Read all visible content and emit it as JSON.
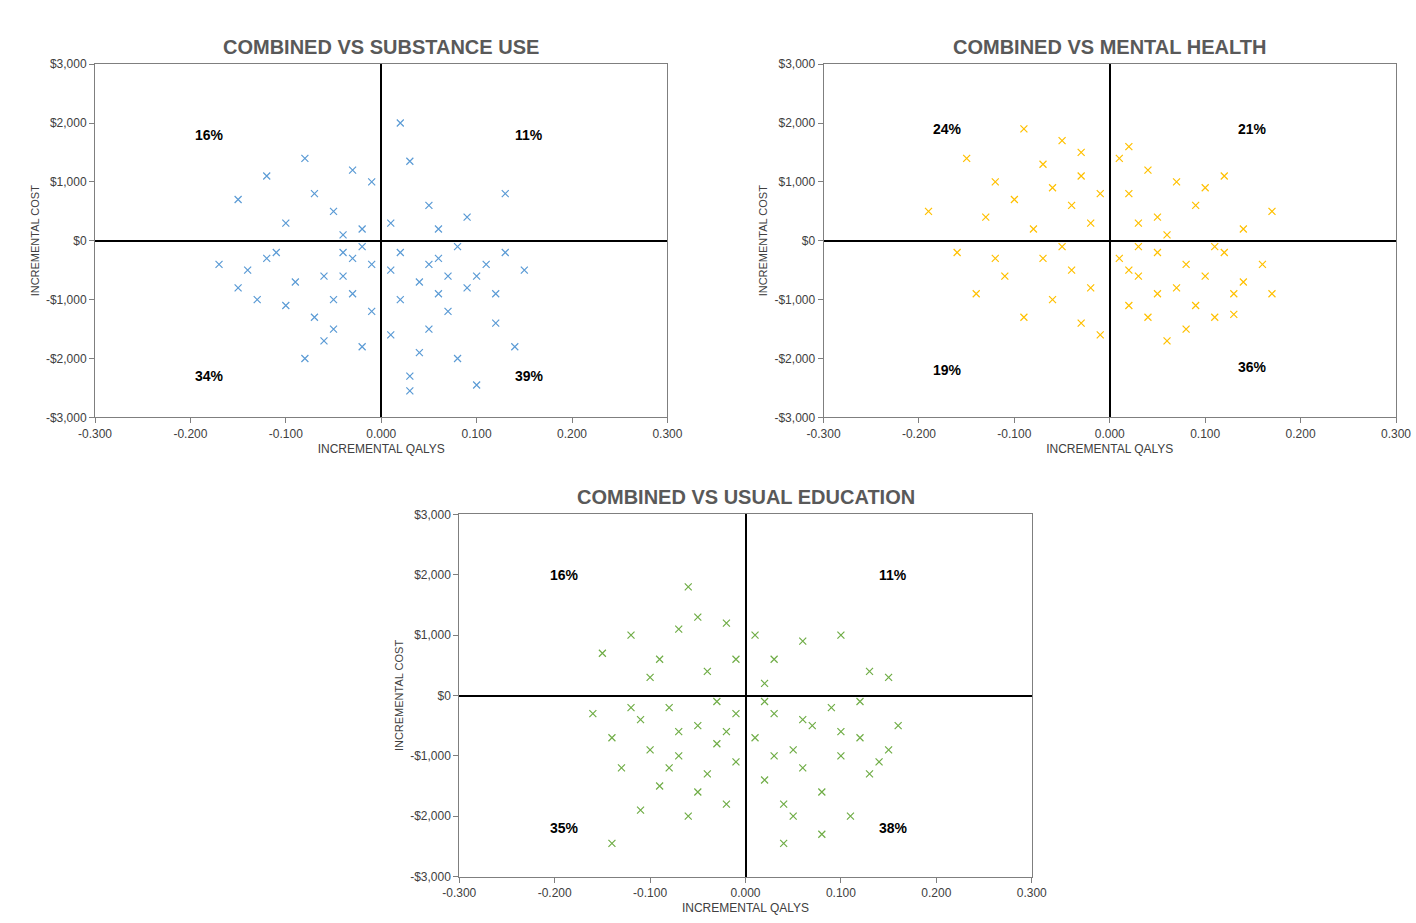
{
  "chart_data": [
    {
      "type": "scatter",
      "title": "COMBINED VS SUBSTANCE USE",
      "xlabel": "INCREMENTAL QALYS",
      "ylabel": "INCREMENTAL COST",
      "color": "#5B9BD5",
      "marker": "x",
      "grid": false,
      "xlim": [
        -0.3,
        0.3
      ],
      "ylim": [
        -3000,
        3000
      ],
      "xticks": [
        {
          "value": -0.3,
          "label": "-0.300"
        },
        {
          "value": -0.2,
          "label": "-0.200"
        },
        {
          "value": -0.1,
          "label": "-0.100"
        },
        {
          "value": 0,
          "label": "0.000"
        },
        {
          "value": 0.1,
          "label": "0.100"
        },
        {
          "value": 0.2,
          "label": "0.200"
        },
        {
          "value": 0.3,
          "label": "0.300"
        }
      ],
      "yticks": [
        {
          "value": -3000,
          "label": "-$3,000"
        },
        {
          "value": -2000,
          "label": "-$2,000"
        },
        {
          "value": -1000,
          "label": "-$1,000"
        },
        {
          "value": 0,
          "label": "$0"
        },
        {
          "value": 1000,
          "label": "$1,000"
        },
        {
          "value": 2000,
          "label": "$2,000"
        },
        {
          "value": 3000,
          "label": "$3,000"
        }
      ],
      "annotations": [
        {
          "text": "16%",
          "x": -0.18,
          "y": 1800
        },
        {
          "text": "11%",
          "x": 0.155,
          "y": 1800
        },
        {
          "text": "34%",
          "x": -0.18,
          "y": -2300
        },
        {
          "text": "39%",
          "x": 0.155,
          "y": -2300
        }
      ],
      "x": [
        0.02,
        0.05,
        0.03,
        0.09,
        0.13,
        0.01,
        0.06,
        -0.08,
        -0.03,
        -0.15,
        -0.12,
        -0.05,
        -0.01,
        -0.1,
        -0.02,
        -0.07,
        -0.04,
        -0.17,
        -0.15,
        -0.12,
        -0.1,
        -0.08,
        -0.06,
        -0.05,
        -0.04,
        -0.03,
        -0.02,
        -0.01,
        -0.09,
        -0.07,
        -0.11,
        -0.13,
        -0.02,
        -0.05,
        -0.03,
        -0.06,
        -0.01,
        -0.14,
        -0.04,
        0.01,
        0.02,
        0.03,
        0.03,
        0.04,
        0.05,
        0.06,
        0.07,
        0.08,
        0.09,
        0.1,
        0.11,
        0.12,
        0.14,
        0.15,
        0.02,
        0.04,
        0.06,
        0.08,
        0.1,
        0.12,
        0.05,
        0.13,
        0.01,
        0.07
      ],
      "y": [
        2000,
        600,
        1350,
        400,
        800,
        300,
        200,
        1400,
        1200,
        700,
        1100,
        500,
        1000,
        300,
        200,
        800,
        100,
        -400,
        -800,
        -300,
        -1100,
        -2000,
        -600,
        -1500,
        -200,
        -900,
        -1800,
        -400,
        -700,
        -1300,
        -200,
        -1000,
        -100,
        -1000,
        -300,
        -1700,
        -1200,
        -500,
        -600,
        -500,
        -1000,
        -2300,
        -2550,
        -700,
        -1500,
        -300,
        -1200,
        -2000,
        -800,
        -2450,
        -400,
        -1400,
        -1800,
        -500,
        -200,
        -1900,
        -900,
        -100,
        -600,
        -900,
        -400,
        -200,
        -1600,
        -600
      ]
    },
    {
      "type": "scatter",
      "title": "COMBINED VS MENTAL HEALTH",
      "xlabel": "INCREMENTAL QALYS",
      "ylabel": "INCREMENTAL COST",
      "color": "#FFC000",
      "marker": "x",
      "grid": false,
      "xlim": [
        -0.3,
        0.3
      ],
      "ylim": [
        -3000,
        3000
      ],
      "xticks": [
        {
          "value": -0.3,
          "label": "-0.300"
        },
        {
          "value": -0.2,
          "label": "-0.200"
        },
        {
          "value": -0.1,
          "label": "-0.100"
        },
        {
          "value": 0,
          "label": "0.000"
        },
        {
          "value": 0.1,
          "label": "0.100"
        },
        {
          "value": 0.2,
          "label": "0.200"
        },
        {
          "value": 0.3,
          "label": "0.300"
        }
      ],
      "yticks": [
        {
          "value": -3000,
          "label": "-$3,000"
        },
        {
          "value": -2000,
          "label": "-$2,000"
        },
        {
          "value": -1000,
          "label": "-$1,000"
        },
        {
          "value": 0,
          "label": "$0"
        },
        {
          "value": 1000,
          "label": "$1,000"
        },
        {
          "value": 2000,
          "label": "$2,000"
        },
        {
          "value": 3000,
          "label": "$3,000"
        }
      ],
      "annotations": [
        {
          "text": "24%",
          "x": -0.17,
          "y": 1900
        },
        {
          "text": "21%",
          "x": 0.15,
          "y": 1900
        },
        {
          "text": "19%",
          "x": -0.17,
          "y": -2200
        },
        {
          "text": "36%",
          "x": 0.15,
          "y": -2150
        }
      ],
      "x": [
        0.01,
        0.02,
        0.04,
        0.05,
        0.07,
        0.09,
        0.12,
        0.14,
        0.17,
        0.03,
        0.1,
        0.06,
        0.02,
        -0.19,
        -0.15,
        -0.12,
        -0.1,
        -0.09,
        -0.07,
        -0.05,
        -0.04,
        -0.03,
        -0.02,
        -0.01,
        -0.08,
        -0.13,
        -0.06,
        -0.03,
        -0.16,
        -0.14,
        -0.11,
        -0.09,
        -0.07,
        -0.06,
        -0.04,
        -0.03,
        -0.02,
        -0.01,
        -0.05,
        -0.12,
        0.01,
        0.02,
        0.03,
        0.04,
        0.05,
        0.06,
        0.07,
        0.08,
        0.09,
        0.1,
        0.11,
        0.12,
        0.13,
        0.14,
        0.16,
        0.17,
        0.03,
        0.05,
        0.08,
        0.11,
        0.13,
        0.02
      ],
      "y": [
        1400,
        800,
        1200,
        400,
        1000,
        600,
        1100,
        200,
        500,
        300,
        900,
        100,
        1600,
        500,
        1400,
        1000,
        700,
        1900,
        1300,
        1700,
        600,
        1100,
        300,
        800,
        200,
        400,
        900,
        1500,
        -200,
        -900,
        -600,
        -1300,
        -300,
        -1000,
        -500,
        -1400,
        -800,
        -1600,
        -100,
        -300,
        -300,
        -1100,
        -600,
        -1300,
        -200,
        -1700,
        -800,
        -400,
        -1100,
        -600,
        -1300,
        -200,
        -900,
        -700,
        -400,
        -900,
        -100,
        -900,
        -1500,
        -100,
        -1250,
        -500
      ]
    },
    {
      "type": "scatter",
      "title": "COMBINED VS USUAL EDUCATION",
      "xlabel": "INCREMENTAL QALYS",
      "ylabel": "INCREMENTAL COST",
      "color": "#70AD47",
      "marker": "x",
      "grid": false,
      "xlim": [
        -0.3,
        0.3
      ],
      "ylim": [
        -3000,
        3000
      ],
      "xticks": [
        {
          "value": -0.3,
          "label": "-0.300"
        },
        {
          "value": -0.2,
          "label": "-0.200"
        },
        {
          "value": -0.1,
          "label": "-0.100"
        },
        {
          "value": 0,
          "label": "0.000"
        },
        {
          "value": 0.1,
          "label": "0.100"
        },
        {
          "value": 0.2,
          "label": "0.200"
        },
        {
          "value": 0.3,
          "label": "0.300"
        }
      ],
      "yticks": [
        {
          "value": -3000,
          "label": "-$3,000"
        },
        {
          "value": -2000,
          "label": "-$2,000"
        },
        {
          "value": -1000,
          "label": "-$1,000"
        },
        {
          "value": 0,
          "label": "$0"
        },
        {
          "value": 1000,
          "label": "$1,000"
        },
        {
          "value": 2000,
          "label": "$2,000"
        },
        {
          "value": 3000,
          "label": "$3,000"
        }
      ],
      "annotations": [
        {
          "text": "16%",
          "x": -0.19,
          "y": 2000
        },
        {
          "text": "11%",
          "x": 0.155,
          "y": 2000
        },
        {
          "text": "35%",
          "x": -0.19,
          "y": -2200
        },
        {
          "text": "38%",
          "x": 0.155,
          "y": -2200
        }
      ],
      "x": [
        0.01,
        0.03,
        0.06,
        0.1,
        0.13,
        0.15,
        0.02,
        -0.15,
        -0.12,
        -0.1,
        -0.07,
        -0.05,
        -0.04,
        -0.02,
        -0.01,
        -0.09,
        -0.06,
        -0.16,
        -0.14,
        -0.13,
        -0.11,
        -0.1,
        -0.09,
        -0.08,
        -0.07,
        -0.06,
        -0.05,
        -0.04,
        -0.03,
        -0.02,
        -0.01,
        -0.12,
        -0.08,
        -0.05,
        -0.03,
        -0.02,
        -0.01,
        -0.07,
        -0.11,
        -0.14,
        0.01,
        0.02,
        0.03,
        0.04,
        0.05,
        0.06,
        0.07,
        0.08,
        0.09,
        0.1,
        0.11,
        0.12,
        0.13,
        0.15,
        0.16,
        0.02,
        0.04,
        0.06,
        0.08,
        0.1,
        0.12,
        0.14,
        0.05,
        0.03
      ],
      "y": [
        1000,
        600,
        900,
        1000,
        400,
        300,
        200,
        700,
        1000,
        300,
        1100,
        1300,
        400,
        1200,
        600,
        600,
        1800,
        -300,
        -700,
        -1200,
        -400,
        -900,
        -1500,
        -200,
        -1000,
        -2000,
        -500,
        -1300,
        -800,
        -1800,
        -300,
        -200,
        -1200,
        -1600,
        -100,
        -600,
        -1100,
        -600,
        -1900,
        -2450,
        -700,
        -1400,
        -300,
        -2450,
        -900,
        -1200,
        -500,
        -1600,
        -200,
        -1000,
        -2000,
        -700,
        -1300,
        -900,
        -500,
        -100,
        -1800,
        -400,
        -2300,
        -600,
        -100,
        -1100,
        -2000,
        -1000
      ]
    }
  ]
}
